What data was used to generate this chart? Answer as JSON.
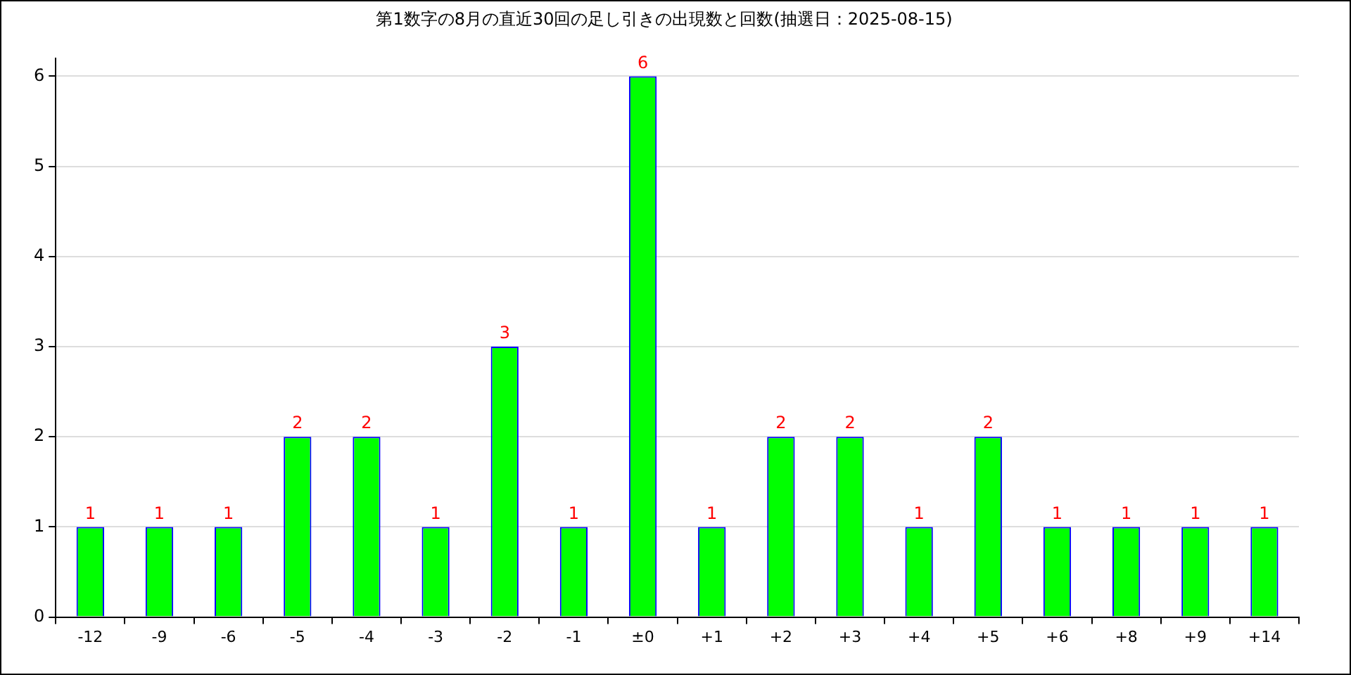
{
  "chart_data": {
    "type": "bar",
    "title": "第1数字の8月の直近30回の足し引きの出現数と回数(抽選日：2025-08-15)",
    "categories": [
      "-12",
      "-9",
      "-6",
      "-5",
      "-4",
      "-3",
      "-2",
      "-1",
      "±0",
      "+1",
      "+2",
      "+3",
      "+4",
      "+5",
      "+6",
      "+8",
      "+9",
      "+14"
    ],
    "values": [
      1,
      1,
      1,
      2,
      2,
      1,
      3,
      1,
      6,
      1,
      2,
      2,
      1,
      2,
      1,
      1,
      1,
      1
    ],
    "color": "#00ff00",
    "ylim": [
      0,
      6.2
    ],
    "yticks": [
      0,
      1,
      2,
      3,
      4,
      5,
      6
    ],
    "grid": "y",
    "data_labels": true,
    "legend": false
  }
}
